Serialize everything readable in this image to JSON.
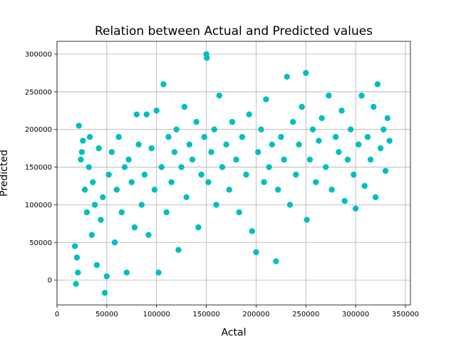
{
  "chart_data": {
    "type": "scatter",
    "title": "Relation between Actual and Predicted values",
    "xlabel": "Actal",
    "ylabel": "Predicted",
    "xlim": [
      0,
      355000
    ],
    "ylim": [
      -33000,
      317000
    ],
    "xticks": [
      0,
      50000,
      100000,
      150000,
      200000,
      250000,
      300000,
      350000
    ],
    "xtick_labels": [
      "0",
      "50000",
      "100000",
      "150000",
      "200000",
      "250000",
      "300000",
      "350000"
    ],
    "yticks": [
      0,
      50000,
      100000,
      150000,
      200000,
      250000,
      300000
    ],
    "ytick_labels": [
      "0",
      "50000",
      "100000",
      "150000",
      "200000",
      "250000",
      "300000"
    ],
    "grid": true,
    "marker_color": "#00bfbf",
    "series": [
      {
        "points": [
          [
            18000,
            45000
          ],
          [
            19000,
            -5000
          ],
          [
            20000,
            30000
          ],
          [
            21000,
            10000
          ],
          [
            22000,
            205000
          ],
          [
            24000,
            160000
          ],
          [
            25000,
            170000
          ],
          [
            26000,
            185000
          ],
          [
            28000,
            120000
          ],
          [
            30000,
            90000
          ],
          [
            32000,
            150000
          ],
          [
            33000,
            190000
          ],
          [
            35000,
            60000
          ],
          [
            36000,
            130000
          ],
          [
            38000,
            100000
          ],
          [
            40000,
            20000
          ],
          [
            42000,
            175000
          ],
          [
            44000,
            80000
          ],
          [
            46000,
            110000
          ],
          [
            48000,
            -17000
          ],
          [
            50000,
            5000
          ],
          [
            52000,
            140000
          ],
          [
            55000,
            170000
          ],
          [
            58000,
            50000
          ],
          [
            60000,
            120000
          ],
          [
            62000,
            190000
          ],
          [
            65000,
            90000
          ],
          [
            68000,
            150000
          ],
          [
            70000,
            10000
          ],
          [
            72000,
            160000
          ],
          [
            75000,
            130000
          ],
          [
            78000,
            70000
          ],
          [
            80000,
            220000
          ],
          [
            82000,
            180000
          ],
          [
            85000,
            100000
          ],
          [
            88000,
            140000
          ],
          [
            90000,
            220000
          ],
          [
            92000,
            60000
          ],
          [
            95000,
            175000
          ],
          [
            98000,
            120000
          ],
          [
            100000,
            225000
          ],
          [
            102000,
            10000
          ],
          [
            105000,
            150000
          ],
          [
            107000,
            260000
          ],
          [
            110000,
            90000
          ],
          [
            112000,
            190000
          ],
          [
            115000,
            130000
          ],
          [
            118000,
            170000
          ],
          [
            120000,
            200000
          ],
          [
            122000,
            40000
          ],
          [
            125000,
            150000
          ],
          [
            128000,
            230000
          ],
          [
            130000,
            110000
          ],
          [
            133000,
            180000
          ],
          [
            136000,
            160000
          ],
          [
            140000,
            210000
          ],
          [
            142000,
            70000
          ],
          [
            145000,
            140000
          ],
          [
            148000,
            190000
          ],
          [
            150000,
            300000
          ],
          [
            150500,
            295000
          ],
          [
            152000,
            130000
          ],
          [
            155000,
            170000
          ],
          [
            158000,
            200000
          ],
          [
            160000,
            100000
          ],
          [
            163000,
            245000
          ],
          [
            166000,
            150000
          ],
          [
            170000,
            180000
          ],
          [
            173000,
            120000
          ],
          [
            176000,
            210000
          ],
          [
            180000,
            160000
          ],
          [
            183000,
            90000
          ],
          [
            186000,
            190000
          ],
          [
            190000,
            140000
          ],
          [
            193000,
            220000
          ],
          [
            196000,
            65000
          ],
          [
            200000,
            37000
          ],
          [
            202000,
            170000
          ],
          [
            205000,
            200000
          ],
          [
            208000,
            130000
          ],
          [
            210000,
            240000
          ],
          [
            213000,
            150000
          ],
          [
            216000,
            180000
          ],
          [
            220000,
            25000
          ],
          [
            222000,
            120000
          ],
          [
            225000,
            190000
          ],
          [
            228000,
            160000
          ],
          [
            231000,
            270000
          ],
          [
            234000,
            100000
          ],
          [
            237000,
            210000
          ],
          [
            240000,
            140000
          ],
          [
            243000,
            180000
          ],
          [
            246000,
            230000
          ],
          [
            250000,
            275000
          ],
          [
            251000,
            80000
          ],
          [
            254000,
            160000
          ],
          [
            257000,
            200000
          ],
          [
            260000,
            130000
          ],
          [
            263000,
            185000
          ],
          [
            266000,
            215000
          ],
          [
            270000,
            150000
          ],
          [
            273000,
            245000
          ],
          [
            276000,
            120000
          ],
          [
            280000,
            190000
          ],
          [
            283000,
            170000
          ],
          [
            286000,
            225000
          ],
          [
            289000,
            105000
          ],
          [
            292000,
            160000
          ],
          [
            295000,
            200000
          ],
          [
            298000,
            140000
          ],
          [
            300000,
            95000
          ],
          [
            303000,
            180000
          ],
          [
            306000,
            245000
          ],
          [
            309000,
            125000
          ],
          [
            312000,
            190000
          ],
          [
            315000,
            160000
          ],
          [
            318000,
            230000
          ],
          [
            320000,
            110000
          ],
          [
            322000,
            260000
          ],
          [
            325000,
            175000
          ],
          [
            328000,
            200000
          ],
          [
            330000,
            145000
          ],
          [
            332000,
            215000
          ],
          [
            334000,
            185000
          ]
        ]
      }
    ]
  }
}
